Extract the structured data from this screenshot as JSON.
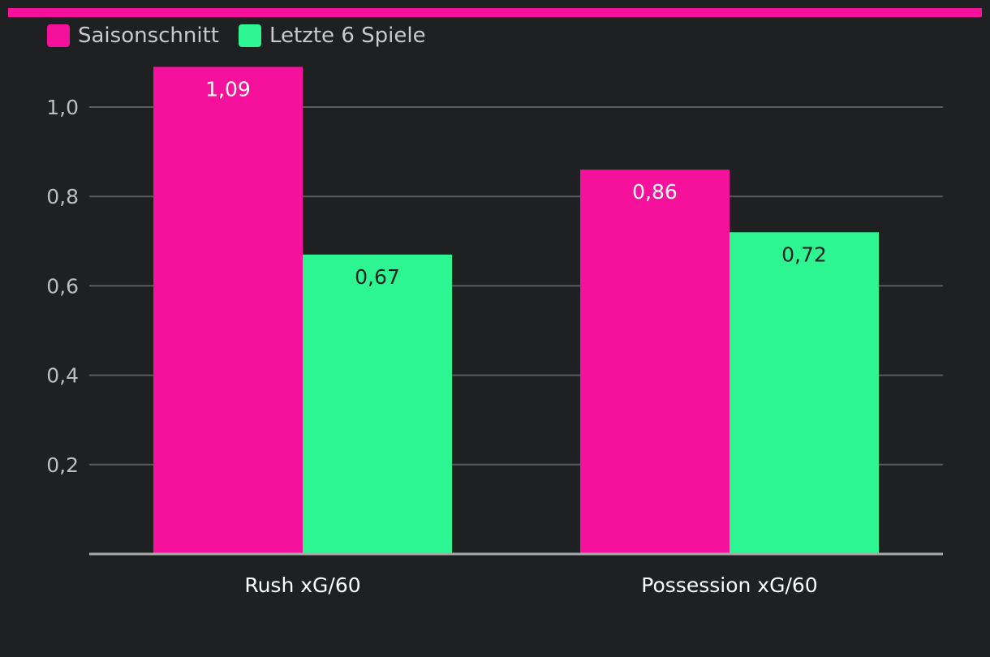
{
  "colors": {
    "background": "#1f2022",
    "accent_bar": "#f5119b",
    "gridline": "#5a5b5e",
    "axis_line": "#a9aaac",
    "tick_text": "#bdbec0",
    "legend_text": "#c9cacc",
    "category_text": "#ffffff"
  },
  "legend": [
    {
      "label": "Saisonschnitt",
      "color": "#f5119b"
    },
    {
      "label": "Letzte 6 Spiele",
      "color": "#2cf592"
    }
  ],
  "chart_data": {
    "type": "bar",
    "categories": [
      "Rush xG/60",
      "Possession xG/60"
    ],
    "series": [
      {
        "name": "Saisonschnitt",
        "values": [
          1.09,
          0.86
        ],
        "labels": [
          "1,09",
          "0,86"
        ],
        "color": "#f5119b",
        "label_color": "#ffffff"
      },
      {
        "name": "Letzte 6 Spiele",
        "values": [
          0.67,
          0.72
        ],
        "labels": [
          "0,67",
          "0,72"
        ],
        "color": "#2cf592",
        "label_color": "#1f2022"
      }
    ],
    "yticks": [
      {
        "value": 0.2,
        "label": "0,2"
      },
      {
        "value": 0.4,
        "label": "0,4"
      },
      {
        "value": 0.6,
        "label": "0,6"
      },
      {
        "value": 0.8,
        "label": "0,8"
      },
      {
        "value": 1.0,
        "label": "1,0"
      }
    ],
    "ylim": [
      0,
      1.09
    ],
    "grid": true,
    "legend_position": "top-left",
    "title": "",
    "xlabel": "",
    "ylabel": ""
  }
}
